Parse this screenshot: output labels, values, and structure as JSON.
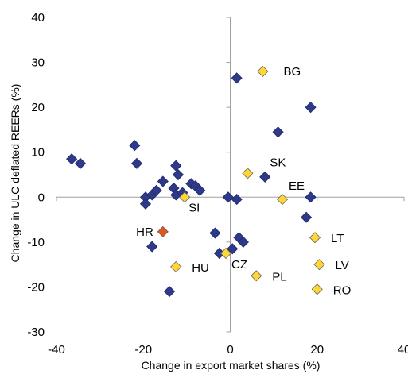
{
  "chart_data": {
    "type": "scatter",
    "title": "",
    "xlabel": "Change in export market shares (%)",
    "ylabel": "Change in ULC deflated REERs (%)",
    "xlim": [
      -40,
      40
    ],
    "ylim": [
      -30,
      40
    ],
    "xticks": [
      -40,
      -20,
      0,
      20,
      40
    ],
    "yticks": [
      -30,
      -20,
      -10,
      0,
      10,
      20,
      30,
      40
    ],
    "grid": false,
    "legend": "none",
    "colors": {
      "other": "#2e3a87",
      "highlight": "#ffd632",
      "croatia": "#e5541b",
      "axis": "#a0a0a0"
    },
    "series": [
      {
        "group": "other",
        "points": [
          {
            "x": -36.5,
            "y": 8.5
          },
          {
            "x": -34.5,
            "y": 7.5
          },
          {
            "x": -22,
            "y": 11.5
          },
          {
            "x": -21.5,
            "y": 7.5
          },
          {
            "x": -19.5,
            "y": 0
          },
          {
            "x": -19.5,
            "y": -1.5
          },
          {
            "x": -18,
            "y": 0.5
          },
          {
            "x": -17,
            "y": 1.5
          },
          {
            "x": -15.5,
            "y": 3.5
          },
          {
            "x": -18,
            "y": -11
          },
          {
            "x": -12.5,
            "y": 7
          },
          {
            "x": -12,
            "y": 5
          },
          {
            "x": -13,
            "y": 2
          },
          {
            "x": -12.5,
            "y": 0.5
          },
          {
            "x": -11,
            "y": 1
          },
          {
            "x": -9,
            "y": 3
          },
          {
            "x": -8,
            "y": 2.5
          },
          {
            "x": -7,
            "y": 1.5
          },
          {
            "x": -14,
            "y": -21
          },
          {
            "x": -3.5,
            "y": -8
          },
          {
            "x": -2.5,
            "y": -12.5
          },
          {
            "x": -0.5,
            "y": 0
          },
          {
            "x": 1.5,
            "y": -0.5
          },
          {
            "x": 1.5,
            "y": 26.5
          },
          {
            "x": 2,
            "y": -9
          },
          {
            "x": 3,
            "y": -10
          },
          {
            "x": 0.5,
            "y": -11.5
          },
          {
            "x": 8,
            "y": 4.5
          },
          {
            "x": 11,
            "y": 14.5
          },
          {
            "x": 18.5,
            "y": 20
          },
          {
            "x": 18.5,
            "y": 0
          },
          {
            "x": 17.5,
            "y": -4.5
          }
        ]
      },
      {
        "group": "highlight",
        "points": [
          {
            "x": 7.5,
            "y": 28,
            "label": "BG"
          },
          {
            "x": 4,
            "y": 5.3,
            "label": "SK"
          },
          {
            "x": 12,
            "y": -0.5,
            "label": "EE"
          },
          {
            "x": -10.5,
            "y": 0,
            "label": "SI"
          },
          {
            "x": 19.5,
            "y": -9,
            "label": "LT"
          },
          {
            "x": 20.5,
            "y": -15,
            "label": "LV"
          },
          {
            "x": 20,
            "y": -20.5,
            "label": "RO"
          },
          {
            "x": -12.5,
            "y": -15.5,
            "label": "HU"
          },
          {
            "x": -1,
            "y": -12.5,
            "label": "CZ"
          },
          {
            "x": 6,
            "y": -17.5,
            "label": "PL"
          }
        ]
      },
      {
        "group": "croatia",
        "points": [
          {
            "x": -15.5,
            "y": -7.7,
            "label": "HR"
          }
        ]
      }
    ]
  }
}
